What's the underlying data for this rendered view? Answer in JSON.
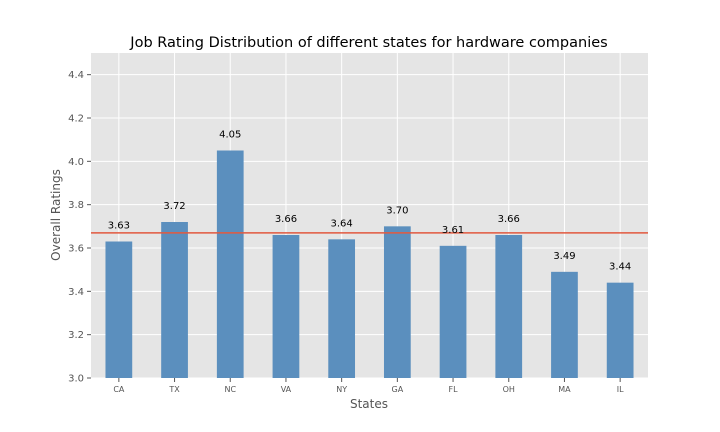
{
  "chart_data": {
    "type": "bar",
    "title": "Job Rating Distribution of different states for hardware companies",
    "xlabel": "States",
    "ylabel": "Overall Ratings",
    "categories": [
      "CA",
      "TX",
      "NC",
      "VA",
      "NY",
      "GA",
      "FL",
      "OH",
      "MA",
      "IL"
    ],
    "values": [
      3.63,
      3.72,
      4.05,
      3.66,
      3.64,
      3.7,
      3.61,
      3.66,
      3.49,
      3.44
    ],
    "value_labels": [
      "3.63",
      "3.72",
      "4.05",
      "3.66",
      "3.64",
      "3.70",
      "3.61",
      "3.66",
      "3.49",
      "3.44"
    ],
    "ylim": [
      3.0,
      4.5
    ],
    "yticks": [
      "3.0",
      "3.2",
      "3.4",
      "3.6",
      "3.8",
      "4.0",
      "4.2",
      "4.4"
    ],
    "reference_line": 3.67,
    "grid": true,
    "colors": {
      "bar": "#5b8fbe",
      "reference_line": "#e2593f",
      "plot_background": "#e5e5e5",
      "grid": "#ffffff"
    }
  }
}
